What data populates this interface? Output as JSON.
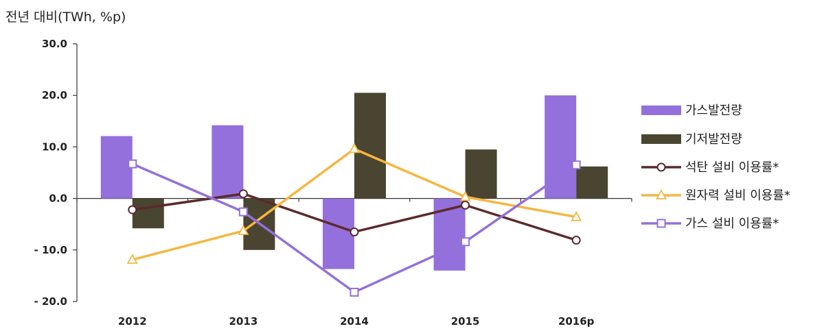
{
  "unit_label": "전년 대비(TWh, %p)",
  "chart_data": {
    "type": "bar",
    "categories": [
      "2012",
      "2013",
      "2014",
      "2015",
      "2016p"
    ],
    "ylim": [
      -20,
      30
    ],
    "yticks": [
      30,
      20,
      10,
      0,
      -10,
      -20
    ],
    "ytick_labels": [
      "30.0",
      "20.0",
      "10.0",
      "0.0",
      "- 10.0",
      "- 20.0"
    ],
    "grid": false,
    "legend_position": "right",
    "bar_series": [
      {
        "name": "가스발전량",
        "color": "#9370DB",
        "values": [
          12.1,
          14.2,
          -13.7,
          -14.0,
          20.0
        ]
      },
      {
        "name": "기저발전량",
        "color": "#4A4530",
        "values": [
          -5.8,
          -10.0,
          20.5,
          9.5,
          6.2
        ]
      }
    ],
    "line_series": [
      {
        "name": "석탄 설비 이용률*",
        "color": "#5C2A2A",
        "marker": "circle",
        "values": [
          -2.2,
          0.9,
          -6.5,
          -1.3,
          -8.1
        ]
      },
      {
        "name": "원자력 설비 이용률*",
        "color": "#F5B740",
        "marker": "triangle",
        "values": [
          -11.9,
          -6.3,
          9.6,
          0.3,
          -3.6
        ]
      },
      {
        "name": "가스 설비 이용률*",
        "color": "#9370DB",
        "marker": "square",
        "values": [
          6.7,
          -2.6,
          -18.2,
          -8.4,
          6.5
        ]
      }
    ]
  }
}
